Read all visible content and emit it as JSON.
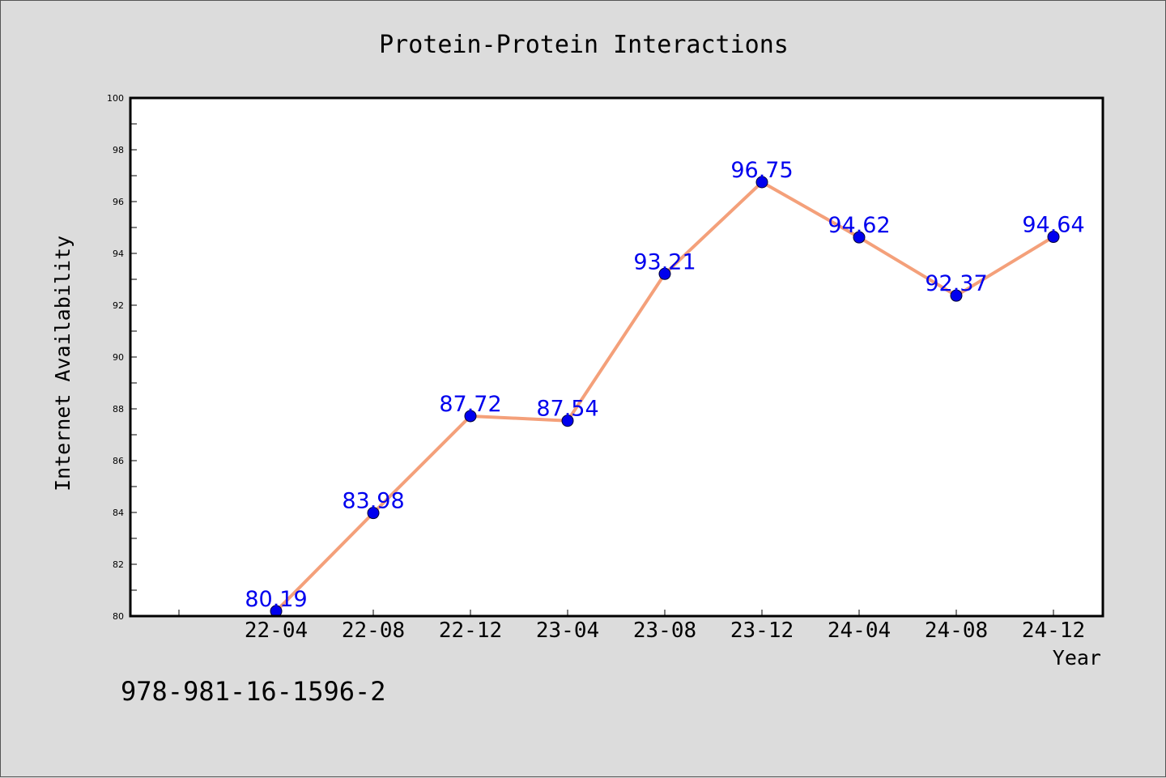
{
  "chart_data": {
    "type": "line",
    "title": "Protein-Protein Interactions",
    "xlabel": "Year",
    "ylabel": "Internet Availability",
    "categories": [
      "22-04",
      "22-08",
      "22-12",
      "23-04",
      "23-08",
      "23-12",
      "24-04",
      "24-08",
      "24-12"
    ],
    "series": [
      {
        "values": [
          80.19,
          83.98,
          87.72,
          87.54,
          93.21,
          96.75,
          94.62,
          92.37,
          94.64
        ]
      }
    ],
    "ylim": [
      80,
      100
    ],
    "yticks": [
      "80",
      "82",
      "84",
      "86",
      "88",
      "90",
      "92",
      "94",
      "96",
      "98",
      "100"
    ],
    "grid": false,
    "line_color": "#f4a07a",
    "marker_color": "#0000ee",
    "label_color": "#0000ee"
  },
  "footnote": "978-981-16-1596-2"
}
